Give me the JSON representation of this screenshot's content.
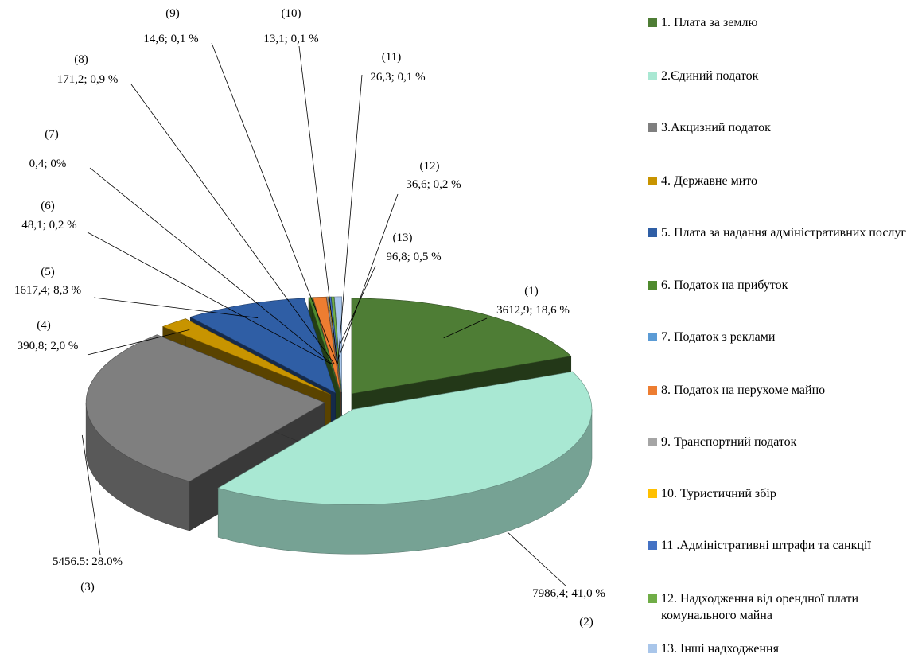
{
  "chart_data": {
    "type": "pie3d",
    "categories": [
      "1. Плата за землю",
      "2.Єдиний податок",
      "3.Акцизний податок",
      "4. Державне мито",
      "5. Плата за надання адміністративних послуг",
      "6. Податок на прибуток",
      "7. Податок з реклами",
      "8. Податок на нерухоме майно",
      "9. Транспортний податок",
      "10. Туристичний збір",
      "11 .Адміністративні штрафи та санкції",
      "12. Надходження від орендної плати комунального майна",
      "13. Інші надходження"
    ],
    "slice_numbers": [
      "(1)",
      "(2)",
      "(3)",
      "(4)",
      "(5)",
      "(6)",
      "(7)",
      "(8)",
      "(9)",
      "(10)",
      "(11)",
      "(12)",
      "(13)"
    ],
    "values": [
      3612.9,
      7986.4,
      5456.5,
      390.8,
      1617.4,
      48.1,
      0.4,
      171.2,
      14.6,
      13.1,
      26.3,
      36.6,
      96.8
    ],
    "value_labels": [
      "3612,9; 18,6 %",
      "7986,4; 41,0 %",
      "5456.5: 28.0%",
      "390,8; 2,0 %",
      "1617,4; 8,3 %",
      "48,1; 0,2 %",
      "0,4; 0%",
      "171,2; 0,9 %",
      "14,6; 0,1 %",
      "13,1; 0,1 %",
      "26,3; 0,1 %",
      "36,6; 0,2 %",
      "96,8; 0,5 %"
    ],
    "colors": [
      "#4e7d35",
      "#a9e8d3",
      "#7f7f7f",
      "#c89400",
      "#2f5ea5",
      "#4f8a2e",
      "#5b9bd5",
      "#ed7d31",
      "#a5a5a5",
      "#ffc000",
      "#4472c4",
      "#70ad47",
      "#a9c6ea"
    ],
    "legend": "right"
  }
}
